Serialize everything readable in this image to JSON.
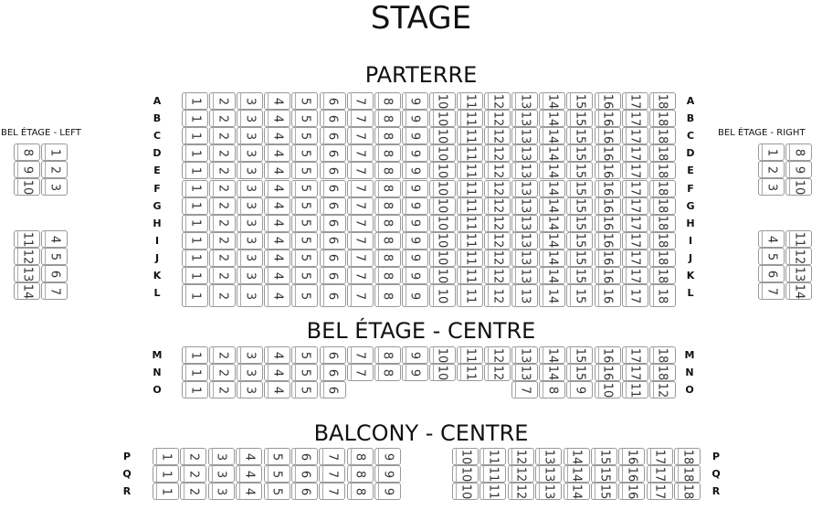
{
  "stage": "STAGE",
  "parterre": {
    "title": "PARTERRE",
    "rows": [
      {
        "label": "A",
        "seats": [
          1,
          2,
          3,
          4,
          5,
          6,
          7,
          8,
          9,
          10,
          11,
          12,
          13,
          14,
          15,
          16,
          17,
          18
        ]
      },
      {
        "label": "B",
        "seats": [
          1,
          2,
          3,
          4,
          5,
          6,
          7,
          8,
          9,
          10,
          11,
          12,
          13,
          14,
          15,
          16,
          17,
          18
        ]
      },
      {
        "label": "C",
        "seats": [
          1,
          2,
          3,
          4,
          5,
          6,
          7,
          8,
          9,
          10,
          11,
          12,
          13,
          14,
          15,
          16,
          17,
          18
        ]
      },
      {
        "label": "D",
        "seats": [
          1,
          2,
          3,
          4,
          5,
          6,
          7,
          8,
          9,
          10,
          11,
          12,
          13,
          14,
          15,
          16,
          17,
          18
        ]
      },
      {
        "label": "E",
        "seats": [
          1,
          2,
          3,
          4,
          5,
          6,
          7,
          8,
          9,
          10,
          11,
          12,
          13,
          14,
          15,
          16,
          17,
          18
        ]
      },
      {
        "label": "F",
        "seats": [
          1,
          2,
          3,
          4,
          5,
          6,
          7,
          8,
          9,
          10,
          11,
          12,
          13,
          14,
          15,
          16,
          17,
          18
        ]
      },
      {
        "label": "G",
        "seats": [
          1,
          2,
          3,
          4,
          5,
          6,
          7,
          8,
          9,
          10,
          11,
          12,
          13,
          14,
          15,
          16,
          17,
          18
        ]
      },
      {
        "label": "H",
        "seats": [
          1,
          2,
          3,
          4,
          5,
          6,
          7,
          8,
          9,
          10,
          11,
          12,
          13,
          14,
          15,
          16,
          17,
          18
        ]
      },
      {
        "label": "I",
        "seats": [
          1,
          2,
          3,
          4,
          5,
          6,
          7,
          8,
          9,
          10,
          11,
          12,
          13,
          14,
          15,
          16,
          17,
          18
        ]
      },
      {
        "label": "J",
        "seats": [
          1,
          2,
          3,
          4,
          5,
          6,
          7,
          8,
          9,
          10,
          11,
          12,
          13,
          14,
          15,
          16,
          17,
          18
        ]
      },
      {
        "label": "K",
        "seats": [
          1,
          2,
          3,
          4,
          5,
          6,
          7,
          8,
          9,
          10,
          11,
          12,
          13,
          14,
          15,
          16,
          17,
          18
        ]
      },
      {
        "label": "L",
        "seats": [
          1,
          2,
          3,
          4,
          5,
          6,
          7,
          8,
          9,
          10,
          11,
          12,
          13,
          14,
          15,
          16,
          17,
          18
        ]
      }
    ]
  },
  "bel_centre": {
    "title": "BEL ÉTAGE - CENTRE",
    "rows": [
      {
        "label": "M",
        "seats": [
          1,
          2,
          3,
          4,
          5,
          6,
          7,
          8,
          9,
          10,
          11,
          12,
          13,
          14,
          15,
          16,
          17,
          18
        ]
      },
      {
        "label": "N",
        "seats": [
          1,
          2,
          3,
          4,
          5,
          6,
          7,
          8,
          9,
          10,
          11,
          12,
          13,
          14,
          15,
          16,
          17,
          18
        ]
      },
      {
        "label": "O",
        "seats": [
          1,
          2,
          3,
          4,
          5,
          6,
          null,
          null,
          null,
          null,
          null,
          null,
          7,
          8,
          9,
          10,
          11,
          12
        ]
      }
    ]
  },
  "balcony": {
    "title": "BALCONY - CENTRE",
    "rows": [
      {
        "label": "P",
        "left": [
          1,
          2,
          3,
          4,
          5,
          6,
          7,
          8,
          9
        ],
        "right": [
          10,
          11,
          12,
          13,
          14,
          15,
          16,
          17,
          18
        ]
      },
      {
        "label": "Q",
        "left": [
          1,
          2,
          3,
          4,
          5,
          6,
          7,
          8,
          9
        ],
        "right": [
          10,
          11,
          12,
          13,
          14,
          15,
          16,
          17,
          18
        ]
      },
      {
        "label": "R",
        "left": [
          1,
          2,
          3,
          4,
          5,
          6,
          7,
          8,
          9
        ],
        "right": [
          10,
          11,
          12,
          13,
          14,
          15,
          16,
          17,
          18
        ]
      }
    ]
  },
  "bel_left": {
    "title": "BEL ÉTAGE - LEFT",
    "groups": [
      [
        [
          8,
          1
        ],
        [
          9,
          2
        ],
        [
          10,
          3
        ]
      ],
      [
        [
          11,
          4
        ],
        [
          12,
          5
        ],
        [
          13,
          6
        ],
        [
          14,
          7
        ]
      ]
    ]
  },
  "bel_right": {
    "title": "BEL ÉTAGE - RIGHT",
    "groups": [
      [
        [
          1,
          8
        ],
        [
          2,
          9
        ],
        [
          3,
          10
        ]
      ],
      [
        [
          4,
          11
        ],
        [
          5,
          12
        ],
        [
          6,
          13
        ],
        [
          7,
          14
        ]
      ]
    ]
  }
}
